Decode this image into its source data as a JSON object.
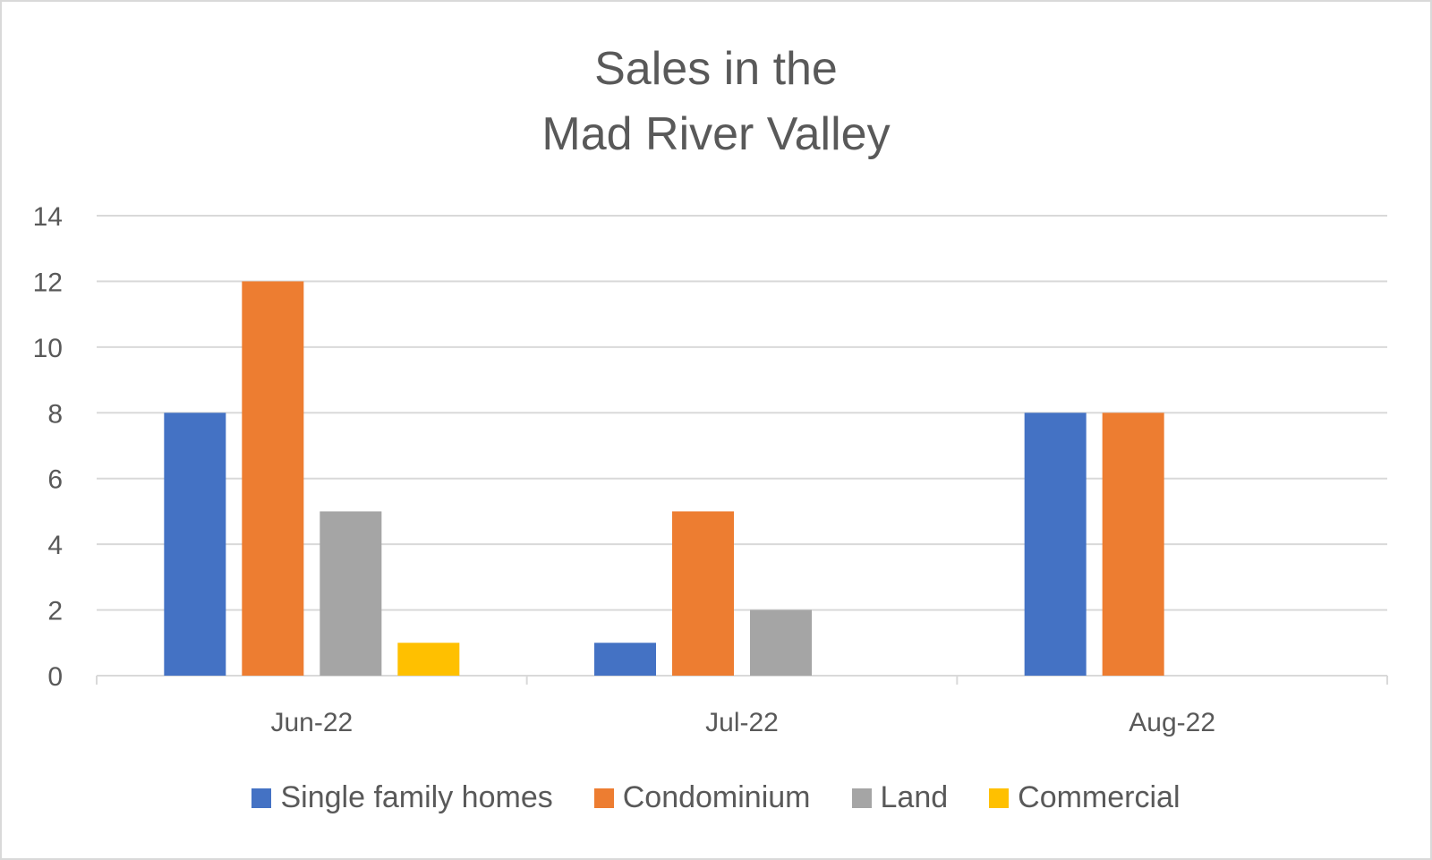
{
  "chart_data": {
    "type": "bar",
    "title_lines": [
      "Sales in the",
      "Mad River Valley"
    ],
    "categories": [
      "Jun-22",
      "Jul-22",
      "Aug-22"
    ],
    "series": [
      {
        "name": "Single family homes",
        "values": [
          8,
          1,
          8
        ],
        "color": "#4472C4"
      },
      {
        "name": "Condominium",
        "values": [
          12,
          5,
          8
        ],
        "color": "#ED7D31"
      },
      {
        "name": "Land",
        "values": [
          5,
          2,
          0
        ],
        "color": "#A5A5A5"
      },
      {
        "name": "Commercial",
        "values": [
          1,
          0,
          0
        ],
        "color": "#FFC000"
      }
    ],
    "ylim": [
      0,
      14
    ],
    "yticks": [
      "0",
      "2",
      "4",
      "6",
      "8",
      "10",
      "12",
      "14"
    ],
    "grid": true,
    "legend_position": "bottom"
  }
}
